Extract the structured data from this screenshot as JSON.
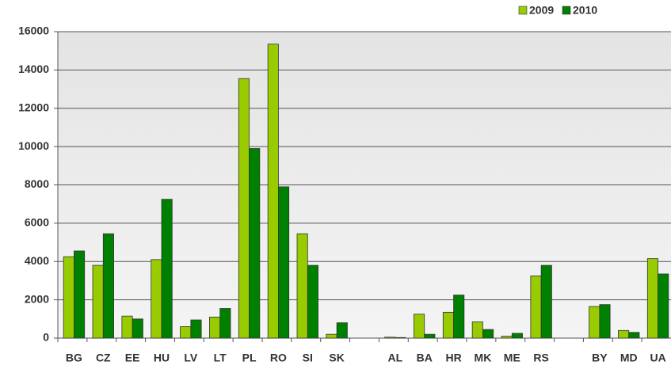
{
  "chart_data": {
    "type": "bar",
    "categories": [
      "BG",
      "CZ",
      "EE",
      "HU",
      "LV",
      "LT",
      "PL",
      "RO",
      "SI",
      "SK",
      null,
      "AL",
      "BA",
      "HR",
      "MK",
      "ME",
      "RS",
      null,
      "BY",
      "MD",
      "UA"
    ],
    "series": [
      {
        "name": "2009",
        "color": "#99cc00",
        "values": [
          4250,
          3800,
          1150,
          4100,
          600,
          1100,
          13550,
          15350,
          5450,
          200,
          null,
          50,
          1250,
          1350,
          850,
          100,
          3250,
          null,
          1650,
          400,
          4150
        ]
      },
      {
        "name": "2010",
        "color": "#008000",
        "values": [
          4550,
          5450,
          1000,
          7250,
          950,
          1550,
          9900,
          7900,
          3800,
          800,
          null,
          30,
          200,
          2250,
          450,
          250,
          3800,
          null,
          1750,
          300,
          3350
        ]
      }
    ],
    "ylim": [
      0,
      16000
    ],
    "yticks": [
      0,
      2000,
      4000,
      6000,
      8000,
      10000,
      12000,
      14000,
      16000
    ],
    "grid": true,
    "legend": "top-right"
  }
}
